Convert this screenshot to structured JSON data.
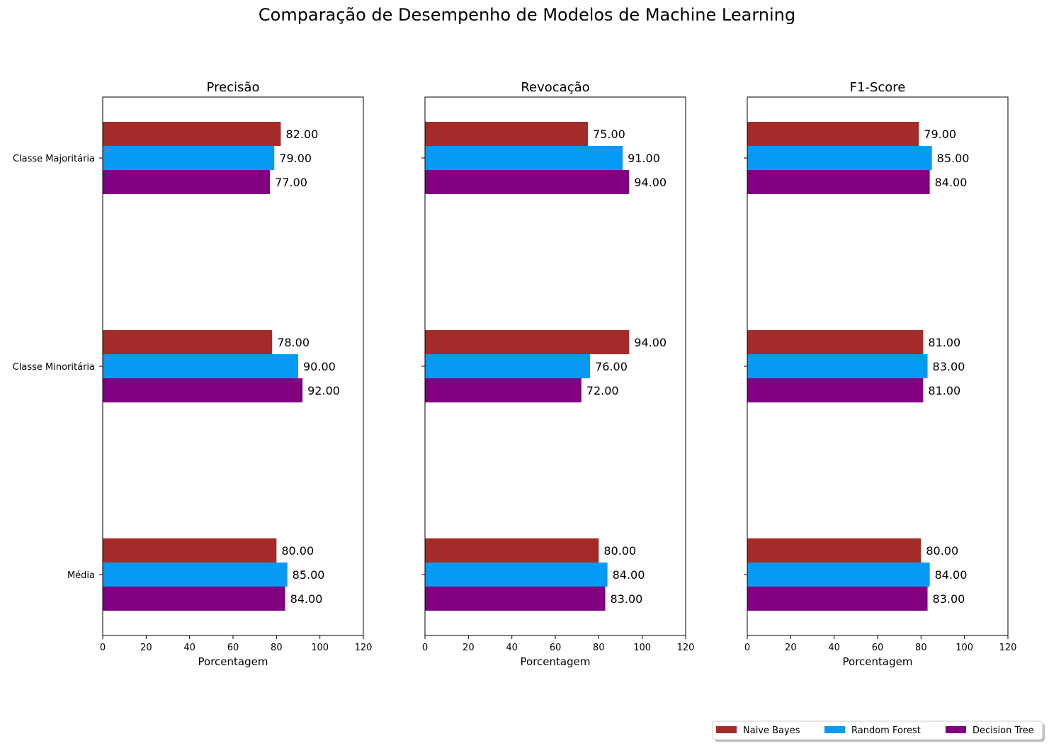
{
  "chart_data": {
    "type": "bar",
    "orientation": "horizontal",
    "title": "Comparação de Desempenho de Modelos de Machine Learning",
    "categories": [
      "Classe Majoritária",
      "Classe Minoritária",
      "Média"
    ],
    "xlabel": "Porcentagem",
    "xlim": [
      0,
      120
    ],
    "xticks": [
      0,
      20,
      40,
      60,
      80,
      100,
      120
    ],
    "legend_position": "bottom-right",
    "grid": false,
    "series_names": [
      "Naive Bayes",
      "Random Forest",
      "Decision Tree"
    ],
    "colors": [
      "#a52a2a",
      "#069af3",
      "#800080"
    ],
    "panels": [
      {
        "title": "Precisão",
        "series": [
          {
            "name": "Naive Bayes",
            "values": [
              82,
              78,
              80
            ]
          },
          {
            "name": "Random Forest",
            "values": [
              79,
              90,
              85
            ]
          },
          {
            "name": "Decision Tree",
            "values": [
              77,
              92,
              84
            ]
          }
        ]
      },
      {
        "title": "Revocação",
        "series": [
          {
            "name": "Naive Bayes",
            "values": [
              75,
              94,
              80
            ]
          },
          {
            "name": "Random Forest",
            "values": [
              91,
              76,
              84
            ]
          },
          {
            "name": "Decision Tree",
            "values": [
              94,
              72,
              83
            ]
          }
        ]
      },
      {
        "title": "F1-Score",
        "series": [
          {
            "name": "Naive Bayes",
            "values": [
              79,
              81,
              80
            ]
          },
          {
            "name": "Random Forest",
            "values": [
              85,
              83,
              84
            ]
          },
          {
            "name": "Decision Tree",
            "values": [
              84,
              81,
              83
            ]
          }
        ]
      }
    ]
  }
}
